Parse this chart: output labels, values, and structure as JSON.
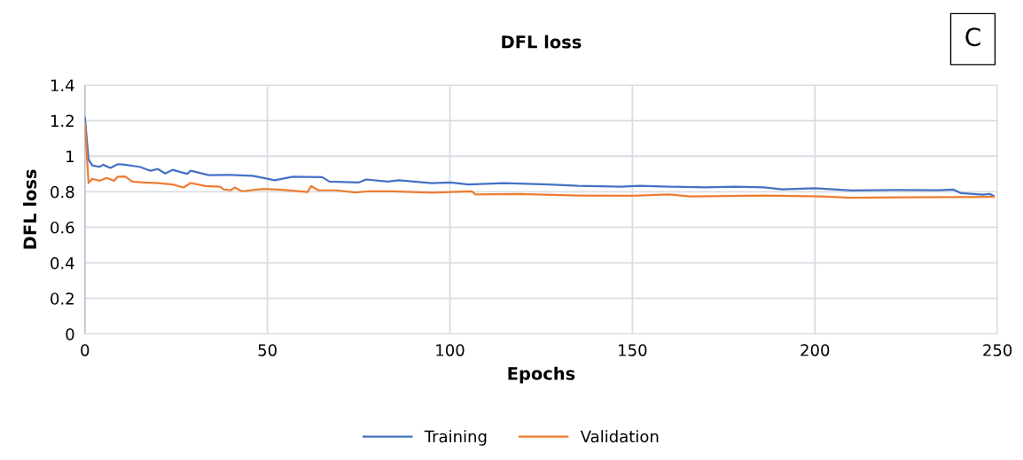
{
  "chart_data": {
    "type": "line",
    "title": "DFL loss",
    "xlabel": "Epochs",
    "ylabel": "DFL loss",
    "annotations": [
      "C"
    ],
    "xlim": [
      0,
      250
    ],
    "xticks": [
      0,
      50,
      100,
      150,
      200,
      250
    ],
    "ylim": [
      0,
      1.4
    ],
    "yticks": [
      0,
      0.2,
      0.4,
      0.6,
      0.8,
      1,
      1.2,
      1.4
    ],
    "grid": true,
    "legend": "bottom",
    "marker": "none",
    "line_style": "solid",
    "series": [
      {
        "name": "Training",
        "color": "#4472c4",
        "x": [
          0,
          1,
          2,
          4,
          5,
          7,
          9,
          11,
          15,
          18,
          20,
          22,
          24,
          28,
          29,
          34,
          40,
          46,
          52,
          57,
          65,
          67,
          75,
          77,
          83,
          86,
          95,
          100,
          105,
          115,
          127,
          135,
          147,
          152,
          160,
          164,
          170,
          178,
          186,
          191,
          200,
          210,
          222,
          234,
          238,
          240,
          246,
          248,
          249
        ],
        "values": [
          1.217,
          0.982,
          0.948,
          0.94,
          0.952,
          0.934,
          0.955,
          0.952,
          0.94,
          0.918,
          0.928,
          0.903,
          0.923,
          0.901,
          0.918,
          0.893,
          0.895,
          0.89,
          0.865,
          0.885,
          0.882,
          0.857,
          0.852,
          0.869,
          0.857,
          0.865,
          0.849,
          0.852,
          0.841,
          0.849,
          0.841,
          0.833,
          0.829,
          0.833,
          0.829,
          0.827,
          0.825,
          0.829,
          0.825,
          0.814,
          0.82,
          0.807,
          0.81,
          0.809,
          0.812,
          0.792,
          0.784,
          0.787,
          0.776
        ]
      },
      {
        "name": "Validation",
        "color": "#ed7d31",
        "x": [
          0,
          1,
          2,
          4,
          6,
          8,
          9,
          11,
          13,
          16,
          20,
          24,
          27,
          29,
          33,
          37,
          38,
          40,
          41,
          43,
          49,
          54,
          61,
          62,
          64,
          69,
          74,
          78,
          84,
          95,
          106,
          107,
          119,
          135,
          150,
          160,
          166,
          186,
          202,
          210,
          226,
          249
        ],
        "values": [
          1.184,
          0.849,
          0.873,
          0.862,
          0.878,
          0.862,
          0.885,
          0.886,
          0.857,
          0.852,
          0.849,
          0.841,
          0.824,
          0.849,
          0.832,
          0.829,
          0.813,
          0.808,
          0.824,
          0.803,
          0.816,
          0.811,
          0.799,
          0.832,
          0.808,
          0.808,
          0.796,
          0.803,
          0.802,
          0.795,
          0.802,
          0.785,
          0.787,
          0.779,
          0.777,
          0.785,
          0.774,
          0.779,
          0.774,
          0.766,
          0.769,
          0.771
        ]
      }
    ]
  }
}
